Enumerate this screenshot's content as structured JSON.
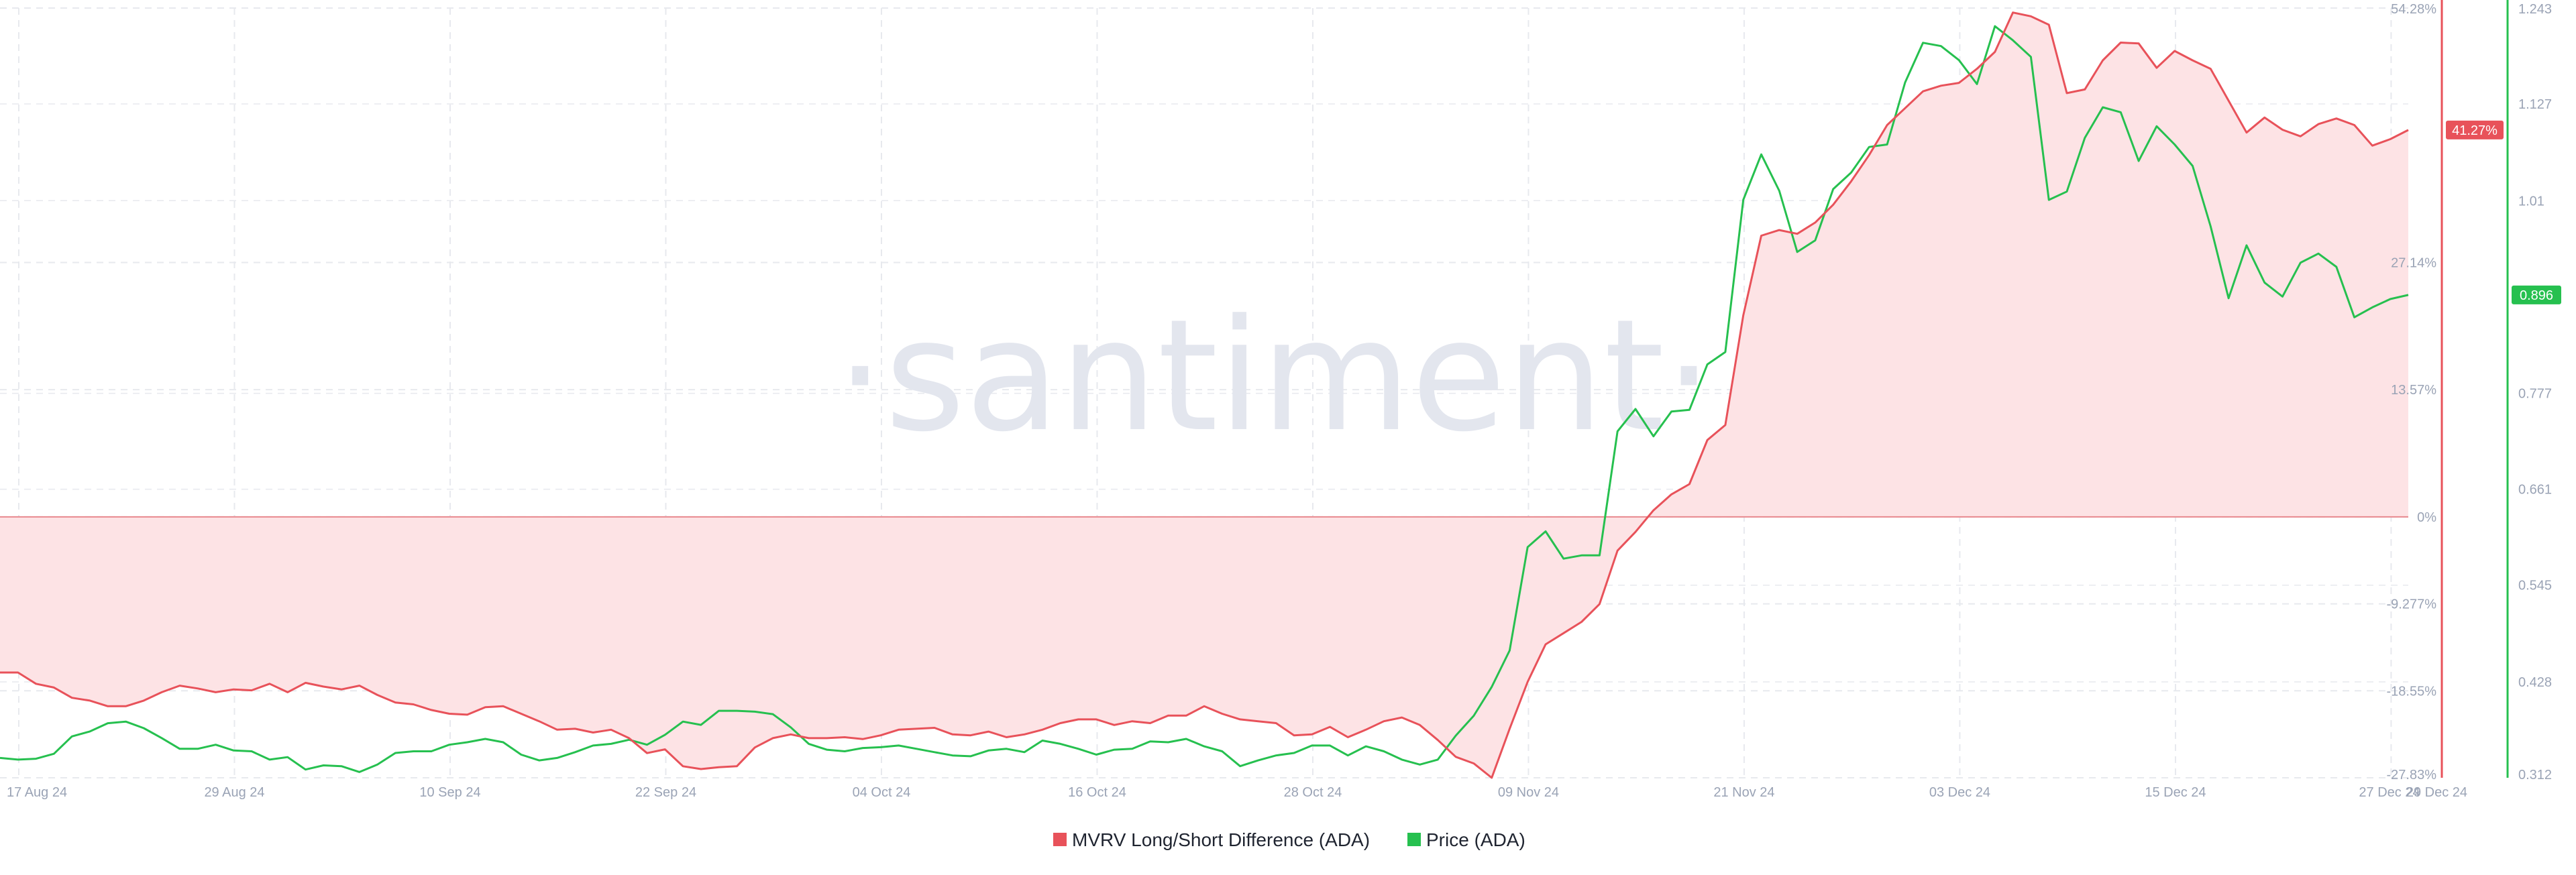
{
  "watermark": "·santiment·",
  "colors": {
    "mvrv": "#e8525a",
    "price": "#26c04f",
    "fill": "#fde3e5",
    "grid": "#e7e9ee",
    "zero": "#e8888e"
  },
  "chart_data": {
    "type": "line",
    "title": "",
    "xlabel": "",
    "x_tick_labels": [
      "17 Aug 24",
      "29 Aug 24",
      "10 Sep 24",
      "22 Sep 24",
      "04 Oct 24",
      "16 Oct 24",
      "28 Oct 24",
      "09 Nov 24",
      "21 Nov 24",
      "03 Dec 24",
      "15 Dec 24",
      "27 Dec 24",
      "29 Dec 24"
    ],
    "x_tick_days": [
      0,
      12,
      24,
      36,
      48,
      60,
      72,
      84,
      96,
      108,
      120,
      132,
      134
    ],
    "x_range_days": [
      0,
      134
    ],
    "y_left": {
      "ylim": [
        -27.83,
        54.28
      ],
      "tick_values": [
        -27.83,
        -18.55,
        -9.277,
        0,
        13.57,
        27.14,
        54.28
      ],
      "tick_labels": [
        "-27.83%",
        "-18.55%",
        "-9.277%",
        "0%",
        "13.57%",
        "27.14%",
        "54.28%"
      ]
    },
    "y_right": {
      "ylim": [
        0.312,
        1.243
      ],
      "tick_values": [
        0.312,
        0.428,
        0.545,
        0.661,
        0.777,
        1.01,
        1.127,
        1.243
      ],
      "tick_labels": [
        "0.312",
        "0.428",
        "0.545",
        "0.661",
        "0.777",
        "1.01",
        "1.127",
        "1.243"
      ]
    },
    "grid": true,
    "legend_position": "bottom-center",
    "series": [
      {
        "name": "MVRV Long/Short Difference (ADA)",
        "axis": "left",
        "last_label": "41.27%",
        "values": [
          -16.6,
          -16.6,
          -17.8,
          -18.2,
          -19.3,
          -19.6,
          -20.2,
          -20.2,
          -19.6,
          -18.7,
          -18.0,
          -18.3,
          -18.7,
          -18.4,
          -18.5,
          -17.8,
          -18.7,
          -17.7,
          -18.1,
          -18.4,
          -18.0,
          -19.0,
          -19.8,
          -20.0,
          -20.6,
          -21.0,
          -21.1,
          -20.3,
          -20.2,
          -21.0,
          -21.8,
          -22.7,
          -22.6,
          -23.0,
          -22.7,
          -23.6,
          -25.2,
          -24.8,
          -26.6,
          -26.9,
          -26.7,
          -26.6,
          -24.6,
          -23.6,
          -23.2,
          -23.6,
          -23.6,
          -23.5,
          -23.7,
          -23.3,
          -22.7,
          -22.6,
          -22.5,
          -23.2,
          -23.3,
          -22.9,
          -23.5,
          -23.2,
          -22.7,
          -22.0,
          -21.6,
          -21.6,
          -22.2,
          -21.8,
          -22.0,
          -21.2,
          -21.2,
          -20.2,
          -21.0,
          -21.6,
          -21.8,
          -22.0,
          -23.3,
          -23.2,
          -22.4,
          -23.5,
          -22.7,
          -21.8,
          -21.4,
          -22.2,
          -23.8,
          -25.6,
          -26.3,
          -27.83,
          -22.6,
          -17.6,
          -13.6,
          -12.4,
          -11.2,
          -9.3,
          -3.6,
          -1.6,
          0.7,
          2.4,
          3.5,
          8.2,
          9.8,
          21.5,
          30.0,
          30.6,
          30.2,
          31.4,
          33.3,
          35.8,
          38.6,
          41.8,
          43.6,
          45.4,
          46.0,
          46.3,
          47.8,
          49.6,
          53.8,
          53.4,
          52.5,
          45.2,
          45.6,
          48.7,
          50.6,
          50.5,
          47.9,
          49.7,
          48.7,
          47.8,
          44.4,
          41.0,
          42.6,
          41.3,
          40.6,
          41.9,
          42.5,
          41.8,
          39.6,
          40.3,
          41.27
        ]
      },
      {
        "name": "Price (ADA)",
        "axis": "right",
        "last_label": "0.896",
        "values": [
          0.336,
          0.334,
          0.335,
          0.341,
          0.362,
          0.368,
          0.378,
          0.38,
          0.372,
          0.36,
          0.347,
          0.347,
          0.352,
          0.345,
          0.344,
          0.334,
          0.337,
          0.322,
          0.327,
          0.326,
          0.319,
          0.328,
          0.342,
          0.344,
          0.344,
          0.352,
          0.355,
          0.359,
          0.355,
          0.34,
          0.333,
          0.336,
          0.343,
          0.351,
          0.353,
          0.358,
          0.352,
          0.364,
          0.38,
          0.376,
          0.393,
          0.393,
          0.392,
          0.389,
          0.373,
          0.353,
          0.346,
          0.344,
          0.348,
          0.349,
          0.351,
          0.347,
          0.343,
          0.339,
          0.338,
          0.345,
          0.347,
          0.343,
          0.357,
          0.353,
          0.347,
          0.34,
          0.346,
          0.347,
          0.356,
          0.355,
          0.359,
          0.35,
          0.344,
          0.326,
          0.333,
          0.339,
          0.342,
          0.351,
          0.351,
          0.339,
          0.35,
          0.344,
          0.334,
          0.328,
          0.334,
          0.363,
          0.387,
          0.422,
          0.466,
          0.591,
          0.61,
          0.577,
          0.581,
          0.581,
          0.731,
          0.758,
          0.725,
          0.755,
          0.757,
          0.812,
          0.827,
          1.011,
          1.066,
          1.022,
          0.948,
          0.962,
          1.024,
          1.044,
          1.075,
          1.078,
          1.153,
          1.201,
          1.197,
          1.18,
          1.151,
          1.221,
          1.204,
          1.184,
          1.011,
          1.021,
          1.086,
          1.123,
          1.117,
          1.058,
          1.1,
          1.078,
          1.052,
          0.979,
          0.892,
          0.956,
          0.911,
          0.894,
          0.935,
          0.946,
          0.93,
          0.869,
          0.881,
          0.891,
          0.896
        ]
      }
    ]
  }
}
